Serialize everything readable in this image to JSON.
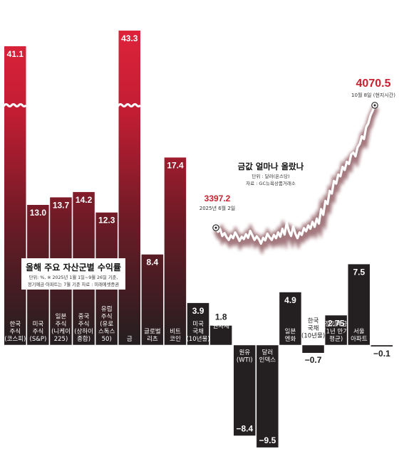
{
  "chart_data": [
    {
      "type": "bar",
      "title": "올해 주요 자산군별 수익률",
      "subtitle_lines": [
        "단위: %, ※ 2025년 1월 1일~9월 26일 기준,",
        "정기예금·아파트는 7월 기준 자료 : 미래에셋증권"
      ],
      "categories": [
        [
          "한국",
          "주식",
          "(코스피)"
        ],
        [
          "미국",
          "주식",
          "(S&P)"
        ],
        [
          "일본",
          "주식",
          "(니케이",
          "225)"
        ],
        [
          "중국",
          "주식",
          "(상하이",
          "종합)"
        ],
        [
          "유럽",
          "주식",
          "(유로",
          "스톡스",
          "50)"
        ],
        [
          "금"
        ],
        [
          "글로벌",
          "리츠"
        ],
        [
          "비트",
          "코인"
        ],
        [
          "미국",
          "국채",
          "(10년물)"
        ],
        [
          "원자재"
        ],
        [
          "원유",
          "(WTI)"
        ],
        [
          "달러",
          "인덱스"
        ],
        [
          "일본",
          "엔화"
        ],
        [
          "한국",
          "국채",
          "(10년물)"
        ],
        [
          "정기예금",
          "(1년 만기",
          "평균)"
        ],
        [
          "서울",
          "아파트"
        ],
        [
          ""
        ]
      ],
      "values": [
        41.1,
        13.0,
        13.7,
        14.2,
        12.3,
        43.3,
        8.4,
        17.4,
        3.9,
        1.8,
        -8.4,
        -9.5,
        4.9,
        -0.7,
        2.75,
        7.5,
        -0.1
      ],
      "value_labels": [
        "41.1",
        "13.0",
        "13.7",
        "14.2",
        "12.3",
        "43.3",
        "8.4",
        "17.4",
        "3.9",
        "1.8",
        "−8.4",
        "−9.5",
        "4.9",
        "−0.7",
        "2.75",
        "7.5",
        "−0.1"
      ],
      "highlight_color": "#e0253d",
      "bar_color": "#241f21"
    },
    {
      "type": "line",
      "title": "금값 얼마나 올랐나",
      "subtitle_lines": [
        "단위 : 달러(온스당)",
        "자료 : GC뉴욕상품거래소"
      ],
      "start": {
        "value": 3397.2,
        "value_label": "3397.2",
        "date_label": "2025년 6월 2일"
      },
      "end": {
        "value": 4070.5,
        "value_label": "4070.5",
        "date_label": "10월 8일 (현지시간)"
      },
      "values": [
        3397.2,
        3375,
        3390,
        3352,
        3368,
        3345,
        3330,
        3355,
        3340,
        3372,
        3350,
        3325,
        3348,
        3335,
        3362,
        3342,
        3380,
        3355,
        3330,
        3350,
        3335,
        3310,
        3342,
        3328,
        3365,
        3345,
        3330,
        3358,
        3340,
        3372,
        3348,
        3392,
        3360,
        3425,
        3378,
        3352,
        3405,
        3365,
        3340,
        3372,
        3358,
        3395,
        3378,
        3410,
        3392,
        3430,
        3402,
        3448,
        3420,
        3500,
        3468,
        3545,
        3528,
        3600,
        3585,
        3655,
        3640,
        3690,
        3680,
        3732,
        3715,
        3760,
        3748,
        3800,
        3810,
        3790,
        3840,
        3858,
        3900,
        3885,
        3950,
        3972,
        4015,
        4040,
        4070.5
      ],
      "color": "#c8202f"
    }
  ]
}
